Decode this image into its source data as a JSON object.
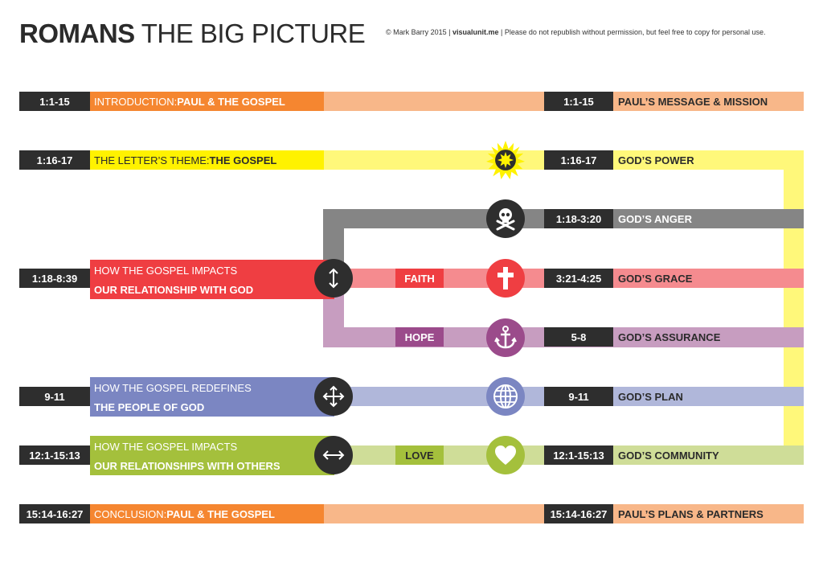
{
  "header": {
    "title_bold": "ROMANS",
    "title_rest": " THE BIG PICTURE",
    "copyright_pre": "© Mark Barry 2015  |  ",
    "copyright_site": "visualunit.me",
    "copyright_post": "  |  Please do not republish without permission, but feel free to copy for personal use."
  },
  "rows": {
    "intro": {
      "ref": "1:1-15",
      "label_pre": "INTRODUCTION: ",
      "label_bold": "PAUL & THE GOSPEL",
      "right_ref": "1:1-15",
      "right_label": "PAUL’S MESSAGE &  MISSION"
    },
    "theme": {
      "ref": "1:16-17",
      "label_pre": "THE LETTER’S THEME: ",
      "label_bold": "THE GOSPEL",
      "right_ref": "1:16-17",
      "right_label": "GOD’S POWER"
    },
    "anger": {
      "right_ref": "1:18-3:20",
      "right_label": "GOD’S ANGER"
    },
    "relationship_god": {
      "ref": "1:18-8:39",
      "line1": "HOW THE GOSPEL IMPACTS",
      "line2": "OUR RELATIONSHIP WITH GOD",
      "tag": "FAITH",
      "right_ref": "3:21-4:25",
      "right_label": "GOD’S GRACE"
    },
    "assurance": {
      "tag": "HOPE",
      "right_ref": "5-8",
      "right_label": "GOD’S ASSURANCE"
    },
    "people": {
      "ref": "9-11",
      "line1": "HOW THE GOSPEL REDEFINES",
      "line2": "THE PEOPLE OF GOD",
      "right_ref": "9-11",
      "right_label": "GOD’S PLAN"
    },
    "others": {
      "ref": "12:1-15:13",
      "line1": "HOW THE GOSPEL IMPACTS",
      "line2": "OUR RELATIONSHIPS WITH OTHERS",
      "tag": "LOVE",
      "right_ref": "12:1-15:13",
      "right_label": "GOD’S COMMUNITY"
    },
    "conclusion": {
      "ref": "15:14-16:27",
      "label_pre": "CONCLUSION: ",
      "label_bold": "PAUL & THE GOSPEL",
      "right_ref": "15:14-16:27",
      "right_label": "PAUL’S PLANS & PARTNERS"
    }
  },
  "icons": [
    "sunburst-icon",
    "skull-crossbones-icon",
    "cross-icon",
    "anchor-icon",
    "globe-icon",
    "heart-icon",
    "vertical-arrows-icon",
    "four-way-arrows-icon",
    "horizontal-arrows-icon"
  ],
  "colors": {
    "orange": "#f58630",
    "orange_light": "#f8b789",
    "yellow": "#fff200",
    "yellow_light": "#fff87a",
    "gray": "#858585",
    "red": "#ef3e42",
    "red_light": "#f58b8f",
    "purple": "#9b4b8b",
    "purple_light": "#c79dc0",
    "blue": "#7b86c2",
    "blue_light": "#b0b7da",
    "green": "#a4c03c",
    "green_light": "#cfdd98",
    "dark": "#2e2e2e"
  }
}
